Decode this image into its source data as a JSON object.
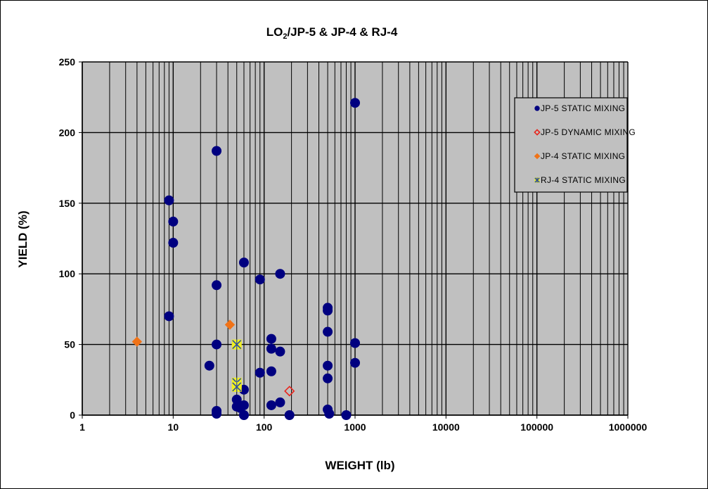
{
  "chart_data": {
    "type": "scatter",
    "title_main": "LO",
    "title_sub": "2",
    "title_rest": "/JP-5 & JP-4 & RJ-4",
    "xlabel": "WEIGHT (lb)",
    "ylabel": "YIELD (%)",
    "xscale": "log",
    "xlim": [
      1,
      1000000
    ],
    "ylim": [
      0,
      250
    ],
    "x_ticks": [
      1,
      10,
      100,
      1000,
      10000,
      100000,
      1000000
    ],
    "x_tick_labels": [
      "1",
      "10",
      "100",
      "1000",
      "10000",
      "100000",
      "1000000"
    ],
    "y_ticks": [
      0,
      50,
      100,
      150,
      200,
      250
    ],
    "y_tick_labels": [
      "0",
      "50",
      "100",
      "150",
      "200",
      "250"
    ],
    "grid": true,
    "plot_background": "#c0c0c0",
    "legend_position": "top-right",
    "series": [
      {
        "name": "JP-5 STATIC MIXING",
        "marker": "circle",
        "color": "#000080",
        "points": [
          [
            9,
            152
          ],
          [
            10,
            137
          ],
          [
            10,
            122
          ],
          [
            9,
            70
          ],
          [
            30,
            187
          ],
          [
            30,
            92
          ],
          [
            30,
            50
          ],
          [
            30,
            3
          ],
          [
            30,
            1
          ],
          [
            25,
            35
          ],
          [
            60,
            108
          ],
          [
            50,
            11
          ],
          [
            50,
            6
          ],
          [
            55,
            5
          ],
          [
            60,
            7
          ],
          [
            60,
            18
          ],
          [
            60,
            0
          ],
          [
            90,
            96
          ],
          [
            90,
            30
          ],
          [
            120,
            54
          ],
          [
            120,
            47
          ],
          [
            120,
            31
          ],
          [
            120,
            7
          ],
          [
            150,
            100
          ],
          [
            150,
            45
          ],
          [
            150,
            9
          ],
          [
            190,
            0
          ],
          [
            500,
            76
          ],
          [
            500,
            74
          ],
          [
            500,
            59
          ],
          [
            500,
            35
          ],
          [
            500,
            26
          ],
          [
            500,
            4
          ],
          [
            520,
            1
          ],
          [
            800,
            0
          ],
          [
            1000,
            221
          ],
          [
            1000,
            51
          ],
          [
            1000,
            37
          ]
        ]
      },
      {
        "name": "JP-5 DYNAMIC MIXING",
        "marker": "diamond-open",
        "color": "#e8261e",
        "points": [
          [
            190,
            17
          ]
        ]
      },
      {
        "name": "JP-4 STATIC MIXING",
        "marker": "diamond",
        "color": "#f07318",
        "points": [
          [
            4,
            52
          ],
          [
            42,
            64
          ]
        ]
      },
      {
        "name": "RJ-4 STATIC MIXING",
        "marker": "asterisk-square",
        "color": "#f0f020",
        "points": [
          [
            50,
            50
          ],
          [
            50,
            23
          ],
          [
            50,
            20
          ]
        ]
      }
    ]
  }
}
